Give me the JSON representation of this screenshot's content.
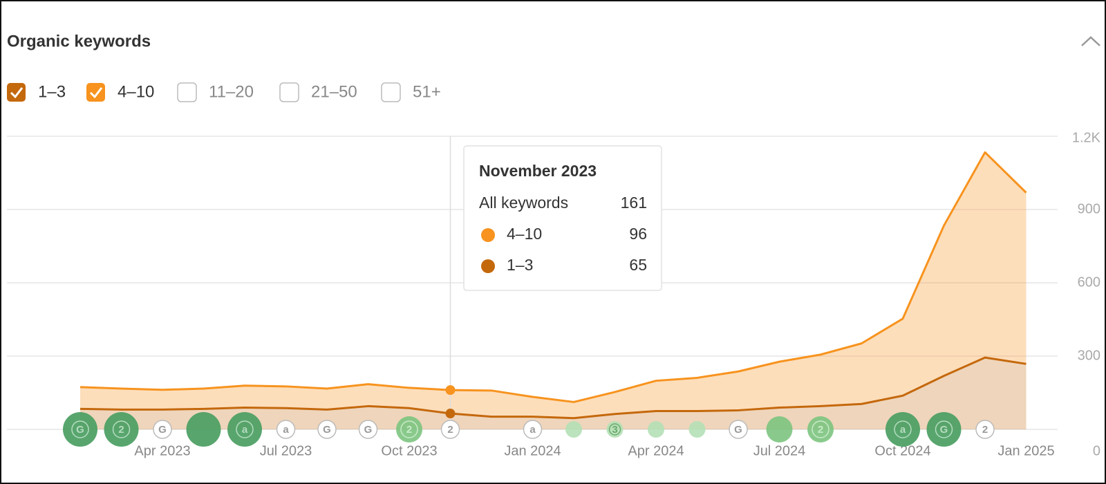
{
  "chart_data": {
    "type": "stacked-area",
    "title": "Organic keywords",
    "categories": [
      null,
      null,
      "Apr 2023",
      null,
      null,
      "Jul 2023",
      null,
      null,
      "Oct 2023",
      null,
      null,
      "Jan 2024",
      null,
      null,
      "Apr 2024",
      null,
      null,
      "Jul 2024",
      null,
      null,
      "Oct 2024",
      null,
      null,
      "Jan 2025"
    ],
    "series": [
      {
        "name": "1–3",
        "color": "#c4680c",
        "checked": true,
        "values": [
          84,
          81,
          81,
          84,
          89,
          87,
          81,
          95,
          87,
          65,
          52,
          52,
          46,
          63,
          75,
          75,
          78,
          89,
          95,
          104,
          138,
          219,
          294,
          268
        ]
      },
      {
        "name": "4–10",
        "color": "#f7931e",
        "checked": true,
        "values": [
          89,
          86,
          81,
          83,
          90,
          89,
          86,
          90,
          83,
          96,
          107,
          81,
          66,
          90,
          124,
          136,
          159,
          188,
          211,
          248,
          315,
          615,
          840,
          701
        ]
      }
    ],
    "unchecked_series": [
      "11–20",
      "21–50",
      "51+"
    ],
    "ylim": [
      0,
      1200
    ],
    "yticks": [
      0,
      300,
      600,
      900,
      {
        "value": 1200,
        "label": "1.2K"
      }
    ],
    "grid": true,
    "hover_index": 9,
    "tooltip": {
      "title": "November 2023",
      "total_label": "All keywords",
      "total": 161,
      "rows": [
        {
          "name": "4–10",
          "value": 96
        },
        {
          "name": "1–3",
          "value": 65
        }
      ]
    },
    "events": [
      {
        "label": "G",
        "style": "dark"
      },
      {
        "label": "2",
        "style": "dark"
      },
      {
        "label": "G",
        "style": "white"
      },
      {
        "style": "dark"
      },
      {
        "label": "a",
        "style": "dark"
      },
      {
        "label": "a",
        "style": "white"
      },
      {
        "label": "G",
        "style": "white"
      },
      {
        "label": "G",
        "style": "white"
      },
      {
        "label": "2",
        "style": "medium"
      },
      {
        "label": "2",
        "style": "white"
      },
      null,
      {
        "label": "a",
        "style": "white"
      },
      {
        "style": "light"
      },
      {
        "label": "3",
        "style": "light"
      },
      {
        "style": "light"
      },
      {
        "style": "light"
      },
      {
        "label": "G",
        "style": "white"
      },
      {
        "style": "medium"
      },
      {
        "label": "2",
        "style": "medium"
      },
      null,
      {
        "label": "a",
        "style": "dark"
      },
      {
        "label": "G",
        "style": "dark"
      },
      {
        "label": "2",
        "style": "white"
      },
      null
    ]
  }
}
